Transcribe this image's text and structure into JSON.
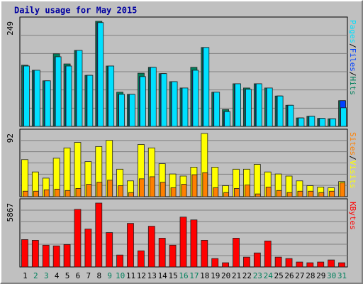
{
  "chart_data": [
    {
      "type": "bar",
      "title": "Daily usage for May 2015",
      "ylim": [
        0,
        249
      ],
      "yticks": [
        249
      ],
      "legend_separator": "/",
      "series": [
        {
          "name": "Hits",
          "color": "#00805c",
          "values": [
            145,
            133,
            108,
            172,
            148,
            180,
            121,
            249,
            143,
            81,
            76,
            126,
            140,
            125,
            106,
            91,
            140,
            187,
            81,
            40,
            101,
            91,
            101,
            91,
            72,
            50,
            20,
            24,
            19,
            18,
            61
          ]
        },
        {
          "name": "Files",
          "color": "#0040ff",
          "values": [
            143,
            133,
            108,
            165,
            143,
            180,
            121,
            246,
            143,
            76,
            76,
            118,
            140,
            125,
            106,
            91,
            133,
            187,
            81,
            35,
            101,
            88,
            101,
            91,
            72,
            50,
            20,
            24,
            19,
            18,
            61
          ]
        },
        {
          "name": "Pages",
          "color": "#00e0ff",
          "values": [
            143,
            133,
            108,
            165,
            143,
            180,
            121,
            246,
            143,
            76,
            76,
            118,
            140,
            125,
            106,
            91,
            133,
            187,
            81,
            35,
            101,
            88,
            101,
            91,
            72,
            50,
            20,
            24,
            19,
            18,
            44
          ]
        }
      ]
    },
    {
      "type": "bar",
      "ylim": [
        0,
        92
      ],
      "yticks": [
        92
      ],
      "legend_separator": "/",
      "series": [
        {
          "name": "Visits",
          "color": "#ffff00",
          "values": [
            54,
            36,
            27,
            56,
            71,
            79,
            51,
            73,
            82,
            40,
            23,
            76,
            71,
            48,
            33,
            30,
            43,
            92,
            43,
            16,
            40,
            40,
            47,
            36,
            33,
            30,
            23,
            16,
            14,
            13,
            22
          ]
        },
        {
          "name": "Sites",
          "color": "#ff8000",
          "values": [
            8,
            8,
            10,
            11,
            9,
            12,
            18,
            21,
            24,
            16,
            6,
            26,
            29,
            21,
            13,
            18,
            32,
            35,
            13,
            6,
            12,
            17,
            4,
            14,
            9,
            6,
            8,
            8,
            6,
            8,
            20
          ]
        }
      ]
    },
    {
      "type": "bar",
      "ylim": [
        0,
        5867
      ],
      "yticks": [
        5867
      ],
      "categories": [
        "1",
        "2",
        "3",
        "4",
        "5",
        "6",
        "7",
        "8",
        "9",
        "10",
        "11",
        "12",
        "13",
        "14",
        "15",
        "16",
        "17",
        "18",
        "19",
        "20",
        "21",
        "22",
        "23",
        "24",
        "25",
        "26",
        "27",
        "28",
        "29",
        "30",
        "31"
      ],
      "category_colors": [
        "#000000",
        "#00805c",
        "#00805c",
        "#000000",
        "#000000",
        "#000000",
        "#000000",
        "#000000",
        "#00805c",
        "#00805c",
        "#000000",
        "#000000",
        "#000000",
        "#000000",
        "#000000",
        "#00805c",
        "#00805c",
        "#000000",
        "#000000",
        "#000000",
        "#000000",
        "#000000",
        "#00805c",
        "#00805c",
        "#000000",
        "#000000",
        "#000000",
        "#000000",
        "#000000",
        "#00805c",
        "#00805c"
      ],
      "series": [
        {
          "name": "KBytes",
          "color": "#ff0000",
          "values": [
            2515,
            2450,
            2000,
            1935,
            2064,
            5290,
            3483,
            5867,
            3160,
            1097,
            4000,
            1484,
            3741,
            2645,
            2000,
            4580,
            4322,
            2451,
            774,
            387,
            2645,
            903,
            1290,
            2387,
            903,
            774,
            452,
            387,
            452,
            645,
            387
          ]
        }
      ]
    }
  ]
}
